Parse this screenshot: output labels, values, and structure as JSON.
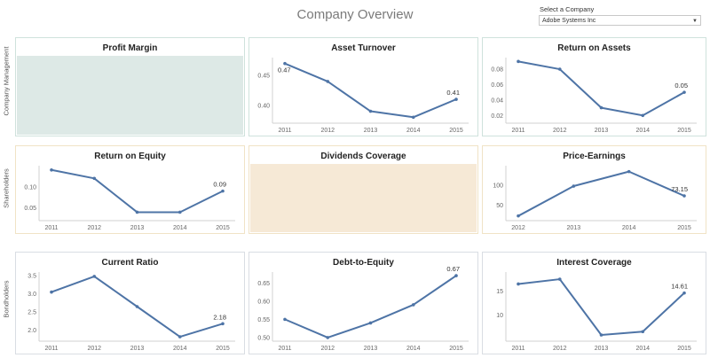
{
  "title": "Company Overview",
  "filter": {
    "label": "Select a Company",
    "value": "Adobe Systems Inc"
  },
  "row_labels": [
    "Company Management",
    "Shareholders",
    "Bondholders"
  ],
  "colors": {
    "line": "#4e74a6",
    "empty_teal": "#dde9e6",
    "empty_tan": "#f6e9d6"
  },
  "panels": [
    {
      "title": "Profit Margin",
      "empty": true
    },
    {
      "title": "Asset Turnover"
    },
    {
      "title": "Return on Assets"
    },
    {
      "title": "Return on Equity"
    },
    {
      "title": "Dividends Coverage",
      "empty": true
    },
    {
      "title": "Price-Earnings"
    },
    {
      "title": "Current Ratio"
    },
    {
      "title": "Debt-to-Equity"
    },
    {
      "title": "Interest Coverage"
    }
  ],
  "chart_data": [
    {
      "type": "line",
      "title": "Asset Turnover",
      "x": [
        "2011",
        "2012",
        "2013",
        "2014",
        "2015"
      ],
      "values": [
        0.47,
        0.44,
        0.39,
        0.38,
        0.41
      ],
      "ylim": [
        0.37,
        0.48
      ],
      "yticks": [
        0.4,
        0.45
      ],
      "ytick_labels": [
        "0.40",
        "0.45"
      ],
      "labels": [
        {
          "i": 0,
          "text": "0.47"
        },
        {
          "i": 4,
          "text": "0.41"
        }
      ]
    },
    {
      "type": "line",
      "title": "Return on Assets",
      "x": [
        "2011",
        "2012",
        "2013",
        "2014",
        "2015"
      ],
      "values": [
        0.09,
        0.08,
        0.03,
        0.02,
        0.05
      ],
      "ylim": [
        0.01,
        0.095
      ],
      "yticks": [
        0.02,
        0.04,
        0.06,
        0.08
      ],
      "ytick_labels": [
        "0.02",
        "0.04",
        "0.06",
        "0.08"
      ],
      "labels": [
        {
          "i": 4,
          "text": "0.05"
        }
      ]
    },
    {
      "type": "line",
      "title": "Return on Equity",
      "x": [
        "2011",
        "2012",
        "2013",
        "2014",
        "2015"
      ],
      "values": [
        0.14,
        0.12,
        0.04,
        0.04,
        0.09
      ],
      "ylim": [
        0.02,
        0.15
      ],
      "yticks": [
        0.05,
        0.1
      ],
      "ytick_labels": [
        "0.05",
        "0.10"
      ],
      "labels": [
        {
          "i": 4,
          "text": "0.09"
        }
      ]
    },
    {
      "type": "line",
      "title": "Price-Earnings",
      "x": [
        "2012",
        "2013",
        "2014",
        "2015"
      ],
      "values": [
        22,
        98,
        135,
        73.15
      ],
      "ylim": [
        10,
        150
      ],
      "yticks": [
        50,
        100
      ],
      "ytick_labels": [
        "50",
        "100"
      ],
      "labels": [
        {
          "i": 3,
          "text": "73.15"
        }
      ]
    },
    {
      "type": "line",
      "title": "Current Ratio",
      "x": [
        "2011",
        "2012",
        "2013",
        "2014",
        "2015"
      ],
      "values": [
        3.05,
        3.48,
        2.65,
        1.82,
        2.18
      ],
      "ylim": [
        1.7,
        3.6
      ],
      "yticks": [
        2.0,
        2.5,
        3.0,
        3.5
      ],
      "ytick_labels": [
        "2.0",
        "2.5",
        "3.0",
        "3.5"
      ],
      "labels": [
        {
          "i": 4,
          "text": "2.18"
        }
      ]
    },
    {
      "type": "line",
      "title": "Debt-to-Equity",
      "x": [
        "2011",
        "2012",
        "2013",
        "2014",
        "2015"
      ],
      "values": [
        0.55,
        0.5,
        0.54,
        0.59,
        0.67
      ],
      "ylim": [
        0.49,
        0.68
      ],
      "yticks": [
        0.5,
        0.55,
        0.6,
        0.65
      ],
      "ytick_labels": [
        "0.50",
        "0.55",
        "0.60",
        "0.65"
      ],
      "labels": [
        {
          "i": 4,
          "text": "0.67"
        }
      ]
    },
    {
      "type": "line",
      "title": "Interest Coverage",
      "x": [
        "2011",
        "2012",
        "2013",
        "2014",
        "2015"
      ],
      "values": [
        16.5,
        17.5,
        5.8,
        6.5,
        14.61
      ],
      "ylim": [
        4.5,
        19
      ],
      "yticks": [
        10,
        15
      ],
      "ytick_labels": [
        "10",
        "15"
      ],
      "labels": [
        {
          "i": 4,
          "text": "14.61"
        }
      ]
    }
  ]
}
